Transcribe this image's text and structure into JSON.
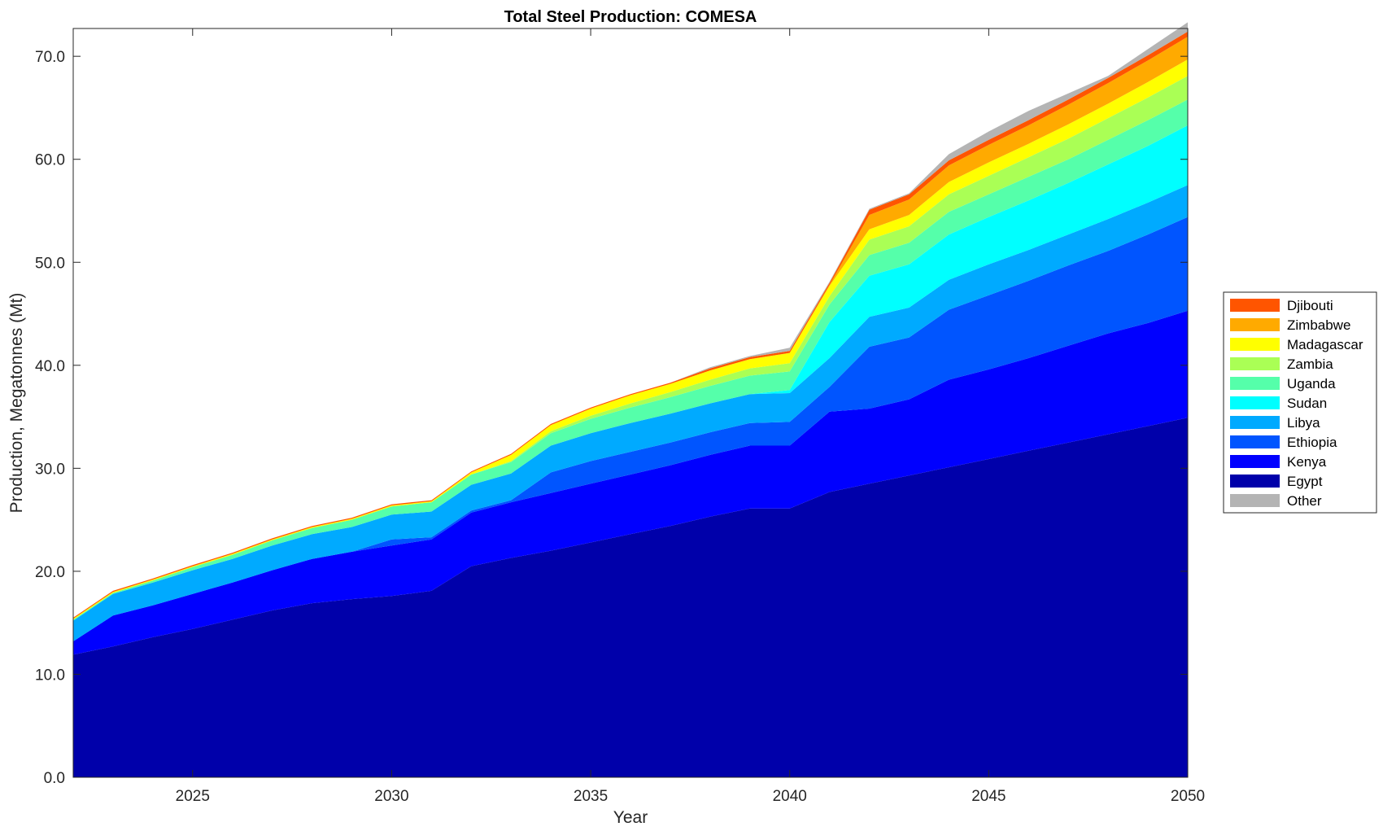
{
  "chart_data": {
    "type": "area",
    "title": "Total Steel Production: COMESA",
    "xlabel": "Year",
    "ylabel": "Production, Megatonnes (Mt)",
    "xlim": [
      2022,
      2050
    ],
    "ylim": [
      0,
      72.7
    ],
    "xticks": [
      "2025",
      "2030",
      "2035",
      "2040",
      "2045",
      "2050"
    ],
    "yticks": [
      "0.0",
      "10.0",
      "20.0",
      "30.0",
      "40.0",
      "50.0",
      "60.0",
      "70.0"
    ],
    "grid": false,
    "legend_position": "right",
    "x": [
      2022,
      2023,
      2024,
      2025,
      2026,
      2027,
      2028,
      2029,
      2030,
      2031,
      2032,
      2033,
      2034,
      2035,
      2036,
      2037,
      2038,
      2039,
      2040,
      2041,
      2042,
      2043,
      2044,
      2045,
      2046,
      2047,
      2048,
      2049,
      2050
    ],
    "series": [
      {
        "name": "Egypt",
        "color": "#0000AA",
        "values": [
          11.9,
          12.7,
          13.6,
          14.4,
          15.3,
          16.2,
          16.9,
          17.3,
          17.6,
          18.1,
          20.5,
          21.3,
          22.0,
          22.8,
          23.6,
          24.4,
          25.3,
          26.1,
          26.1,
          27.7,
          28.5,
          29.3,
          30.1,
          30.9,
          31.7,
          32.5,
          33.3,
          34.1,
          34.9
        ]
      },
      {
        "name": "Kenya",
        "color": "#0000FF",
        "values": [
          1.3,
          3.0,
          3.1,
          3.4,
          3.6,
          3.9,
          4.3,
          4.6,
          4.9,
          5.0,
          5.2,
          5.4,
          5.6,
          5.7,
          5.8,
          5.9,
          6.0,
          6.1,
          6.1,
          7.8,
          7.3,
          7.4,
          8.5,
          8.7,
          9.0,
          9.4,
          9.8,
          10.0,
          10.4
        ]
      },
      {
        "name": "Ethiopia",
        "color": "#0055FF",
        "values": [
          0.0,
          0.0,
          0.0,
          0.0,
          0.0,
          0.0,
          0.0,
          0.0,
          0.6,
          0.2,
          0.2,
          0.2,
          2.0,
          2.2,
          2.2,
          2.2,
          2.2,
          2.2,
          2.3,
          2.4,
          6.0,
          6.0,
          6.8,
          7.2,
          7.5,
          7.8,
          8.0,
          8.6,
          9.1
        ]
      },
      {
        "name": "Libya",
        "color": "#00AAFF",
        "values": [
          2.0,
          2.1,
          2.2,
          2.3,
          2.3,
          2.4,
          2.4,
          2.4,
          2.4,
          2.5,
          2.5,
          2.6,
          2.6,
          2.7,
          2.8,
          2.8,
          2.8,
          2.8,
          2.8,
          2.8,
          2.9,
          2.9,
          2.9,
          3.0,
          3.0,
          3.0,
          3.1,
          3.1,
          3.1
        ]
      },
      {
        "name": "Sudan",
        "color": "#00FFFF",
        "values": [
          0.0,
          0.0,
          0.0,
          0.0,
          0.0,
          0.0,
          0.0,
          0.0,
          0.0,
          0.0,
          0.0,
          0.0,
          0.0,
          0.0,
          0.0,
          0.0,
          0.0,
          0.0,
          0.3,
          3.5,
          4.0,
          4.2,
          4.4,
          4.6,
          4.8,
          5.0,
          5.3,
          5.5,
          5.8
        ]
      },
      {
        "name": "Uganda",
        "color": "#55FFAA",
        "values": [
          0.1,
          0.1,
          0.2,
          0.3,
          0.4,
          0.5,
          0.6,
          0.7,
          0.8,
          0.9,
          1.0,
          1.1,
          1.2,
          1.4,
          1.5,
          1.6,
          1.7,
          1.8,
          1.8,
          1.7,
          2.0,
          2.1,
          2.2,
          2.2,
          2.3,
          2.3,
          2.4,
          2.5,
          2.5
        ]
      },
      {
        "name": "Zambia",
        "color": "#AAFF55",
        "values": [
          0.0,
          0.0,
          0.0,
          0.0,
          0.0,
          0.0,
          0.0,
          0.0,
          0.0,
          0.0,
          0.0,
          0.1,
          0.2,
          0.3,
          0.4,
          0.5,
          0.6,
          0.7,
          0.8,
          0.8,
          1.5,
          1.6,
          1.7,
          1.8,
          1.9,
          2.0,
          2.1,
          2.2,
          2.3
        ]
      },
      {
        "name": "Madagascar",
        "color": "#FFFF00",
        "values": [
          0.1,
          0.1,
          0.1,
          0.1,
          0.1,
          0.1,
          0.1,
          0.1,
          0.1,
          0.1,
          0.2,
          0.6,
          0.6,
          0.7,
          0.8,
          0.8,
          0.9,
          0.9,
          1.0,
          1.0,
          1.0,
          1.1,
          1.2,
          1.3,
          1.3,
          1.4,
          1.4,
          1.5,
          1.6
        ]
      },
      {
        "name": "Zimbabwe",
        "color": "#FFAA00",
        "values": [
          0.0,
          0.0,
          0.0,
          0.0,
          0.0,
          0.0,
          0.0,
          0.0,
          0.0,
          0.0,
          0.0,
          0.0,
          0.0,
          0.0,
          0.0,
          0.0,
          0.0,
          0.0,
          0.0,
          0.1,
          1.4,
          1.5,
          1.6,
          1.7,
          1.8,
          1.9,
          2.0,
          2.1,
          2.2
        ]
      },
      {
        "name": "Djibouti",
        "color": "#FF5500",
        "values": [
          0.1,
          0.1,
          0.1,
          0.1,
          0.1,
          0.1,
          0.1,
          0.1,
          0.1,
          0.1,
          0.1,
          0.1,
          0.1,
          0.1,
          0.1,
          0.1,
          0.2,
          0.2,
          0.2,
          0.2,
          0.5,
          0.5,
          0.5,
          0.5,
          0.5,
          0.5,
          0.5,
          0.5,
          0.5
        ]
      },
      {
        "name": "Other",
        "color": "#B4B4B4",
        "values": [
          0.0,
          0.0,
          0.0,
          0.0,
          0.0,
          0.0,
          0.0,
          0.0,
          0.0,
          0.0,
          0.0,
          0.0,
          0.0,
          0.0,
          0.0,
          0.0,
          0.1,
          0.1,
          0.3,
          0.1,
          0.1,
          0.1,
          0.6,
          0.8,
          0.9,
          0.6,
          0.2,
          0.6,
          0.9
        ]
      }
    ],
    "legend_order": [
      "Djibouti",
      "Zimbabwe",
      "Madagascar",
      "Zambia",
      "Uganda",
      "Sudan",
      "Libya",
      "Ethiopia",
      "Kenya",
      "Egypt",
      "Other"
    ]
  }
}
